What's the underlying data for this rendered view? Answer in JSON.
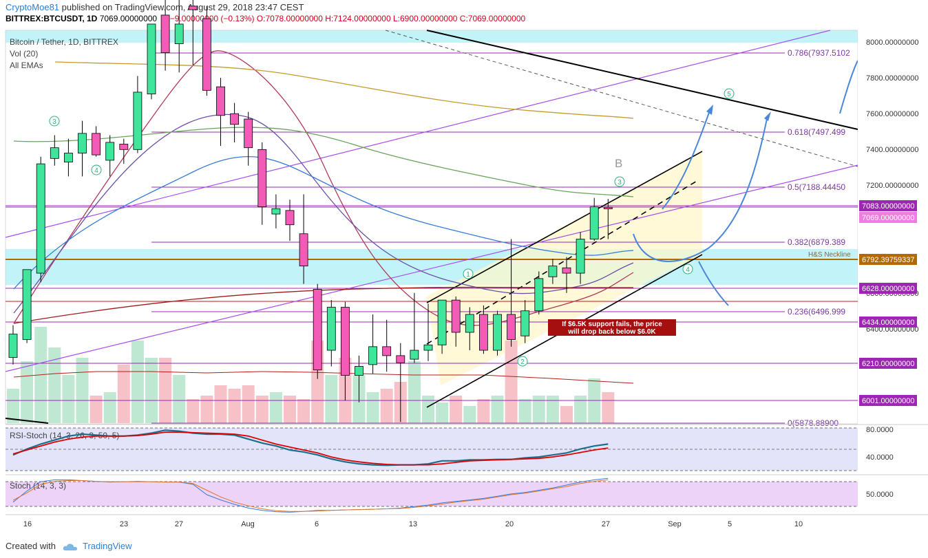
{
  "header": {
    "author": "CryptoMoe81",
    "published_text": "published on TradingView.com, August 29, 2018 23:47 CEST",
    "symbol": "BITTREX:BTCUSDT, 1D",
    "last": "7069.00000000",
    "change": "−9.00000000 (−0.13%)",
    "open": "O:7078.00000000",
    "high": "H:7124.00000000",
    "low": "L:6900.00000000",
    "close": "C:7069.00000000"
  },
  "legend": {
    "title": "Bitcoin / Tether, 1D, BITTREX",
    "volume": "Vol (20)",
    "emas": "All EMAs"
  },
  "footer": {
    "created_with": "Created with",
    "brand": "TradingView"
  },
  "colors": {
    "up": "#3fe59a",
    "down": "#f25cb6",
    "fib": "#9c27b0",
    "channel": "#000000",
    "projection": "#4a86d9",
    "zone": "#b2f0f6",
    "rsi_k": "#1b6f8a",
    "rsi_d": "#e00000"
  },
  "chart_data": [
    {
      "type": "candlestick",
      "title": "Bitcoin / Tether, 1D, BITTREX",
      "x_ticks": [
        "16",
        "23",
        "27",
        "Aug",
        "6",
        "13",
        "20",
        "27",
        "Sep",
        "5",
        "10"
      ],
      "y_ticks": [
        "8000.00000000",
        "7800.00000000",
        "7600.00000000",
        "7400.00000000",
        "7200.00000000",
        "6800.00000000",
        "6400.00000000"
      ],
      "ylim": [
        5860,
        8050
      ],
      "candles": [
        {
          "o": 6240,
          "h": 6420,
          "l": 6200,
          "c": 6370
        },
        {
          "o": 6340,
          "h": 6720,
          "l": 6320,
          "c": 6730
        },
        {
          "o": 6710,
          "h": 7360,
          "l": 6660,
          "c": 7320
        },
        {
          "o": 7350,
          "h": 7480,
          "l": 7310,
          "c": 7410
        },
        {
          "o": 7330,
          "h": 7460,
          "l": 7250,
          "c": 7380
        },
        {
          "o": 7380,
          "h": 7560,
          "l": 7250,
          "c": 7490
        },
        {
          "o": 7490,
          "h": 7530,
          "l": 7360,
          "c": 7370
        },
        {
          "o": 7340,
          "h": 7480,
          "l": 7250,
          "c": 7440
        },
        {
          "o": 7430,
          "h": 7460,
          "l": 7320,
          "c": 7400
        },
        {
          "o": 7400,
          "h": 7810,
          "l": 7380,
          "c": 7720
        },
        {
          "o": 7710,
          "h": 8100,
          "l": 7680,
          "c": 8100
        },
        {
          "o": 8150,
          "h": 8250,
          "l": 7840,
          "c": 7940
        },
        {
          "o": 7990,
          "h": 8250,
          "l": 7830,
          "c": 8100
        },
        {
          "o": 8200,
          "h": 8260,
          "l": 7870,
          "c": 8180
        },
        {
          "o": 8130,
          "h": 8200,
          "l": 7700,
          "c": 7730
        },
        {
          "o": 7750,
          "h": 7800,
          "l": 7420,
          "c": 7590
        },
        {
          "o": 7600,
          "h": 7660,
          "l": 7440,
          "c": 7540
        },
        {
          "o": 7570,
          "h": 7610,
          "l": 7310,
          "c": 7410
        },
        {
          "o": 7400,
          "h": 7440,
          "l": 6980,
          "c": 7080
        },
        {
          "o": 7040,
          "h": 7150,
          "l": 6960,
          "c": 7070
        },
        {
          "o": 7060,
          "h": 7120,
          "l": 6890,
          "c": 6980
        },
        {
          "o": 6930,
          "h": 7150,
          "l": 6650,
          "c": 6750
        },
        {
          "o": 6620,
          "h": 6650,
          "l": 6120,
          "c": 6170
        },
        {
          "o": 6280,
          "h": 6560,
          "l": 6190,
          "c": 6520
        },
        {
          "o": 6520,
          "h": 6550,
          "l": 6000,
          "c": 6140
        },
        {
          "o": 6140,
          "h": 6250,
          "l": 5990,
          "c": 6190
        },
        {
          "o": 6200,
          "h": 6480,
          "l": 6150,
          "c": 6300
        },
        {
          "o": 6300,
          "h": 6450,
          "l": 6160,
          "c": 6250
        },
        {
          "o": 6250,
          "h": 6320,
          "l": 5880,
          "c": 6210
        },
        {
          "o": 6230,
          "h": 6600,
          "l": 6210,
          "c": 6280
        },
        {
          "o": 6280,
          "h": 6540,
          "l": 6220,
          "c": 6310
        },
        {
          "o": 6310,
          "h": 6560,
          "l": 6260,
          "c": 6560
        },
        {
          "o": 6560,
          "h": 6580,
          "l": 6300,
          "c": 6380
        },
        {
          "o": 6380,
          "h": 6520,
          "l": 6280,
          "c": 6480
        },
        {
          "o": 6480,
          "h": 6530,
          "l": 6260,
          "c": 6280
        },
        {
          "o": 6280,
          "h": 6500,
          "l": 6250,
          "c": 6480
        },
        {
          "o": 6480,
          "h": 6900,
          "l": 6300,
          "c": 6340
        },
        {
          "o": 6360,
          "h": 6560,
          "l": 6320,
          "c": 6500
        },
        {
          "o": 6500,
          "h": 6720,
          "l": 6480,
          "c": 6680
        },
        {
          "o": 6690,
          "h": 6790,
          "l": 6650,
          "c": 6750
        },
        {
          "o": 6740,
          "h": 6800,
          "l": 6600,
          "c": 6710
        },
        {
          "o": 6710,
          "h": 6940,
          "l": 6650,
          "c": 6900
        },
        {
          "o": 6900,
          "h": 7130,
          "l": 6890,
          "c": 7080
        },
        {
          "o": 7078,
          "h": 7124,
          "l": 6900,
          "c": 7069
        }
      ],
      "volume_ma": "Vol (20)",
      "annotations": {
        "fib_labels": [
          "0.786(7937.5102",
          "0.618(7497.499",
          "0.5(7188.44450",
          "0.382(6879.389",
          "0.236(6496.999",
          "0(5878.88900"
        ],
        "price_tags": [
          "7083.00000000",
          "7069.00000000",
          "6792.39759337",
          "6628.00000000",
          "6434.00000000",
          "6210.00000000",
          "6001.00000000"
        ],
        "neckline": "H&S Neckline",
        "wave_labels": [
          "3",
          "4",
          "1",
          "2",
          "3",
          "4",
          "5"
        ],
        "B_label": "B",
        "note_line1": "If $6.5K support fails, the price",
        "note_line2": "will drop back below $6.0K"
      }
    },
    {
      "type": "line",
      "title": "RSI-Stoch (14, 3, 26, 3, 50, 5)",
      "y_ticks": [
        "80.0000",
        "40.0000"
      ],
      "ylim": [
        0,
        100
      ],
      "series": [
        {
          "values": [
            40,
            52,
            62,
            70,
            78,
            82,
            80,
            78,
            78,
            80,
            84,
            90,
            88,
            84,
            82,
            82,
            80,
            72,
            64,
            58,
            50,
            46,
            40,
            32,
            26,
            22,
            20,
            19,
            20,
            20,
            22,
            28,
            28,
            30,
            30,
            31,
            31,
            34,
            36,
            40,
            44,
            52,
            58,
            62
          ]
        },
        {
          "values": [
            42,
            50,
            58,
            66,
            72,
            76,
            78,
            78,
            78,
            79,
            82,
            86,
            86,
            85,
            84,
            83,
            82,
            78,
            70,
            62,
            56,
            50,
            44,
            36,
            30,
            26,
            23,
            21,
            20,
            20,
            20,
            22,
            25,
            28,
            29,
            30,
            31,
            32,
            33,
            36,
            40,
            45,
            50,
            54
          ]
        }
      ]
    },
    {
      "type": "line",
      "title": "Stoch (14, 3, 3)",
      "y_ticks": [
        "50.0000"
      ],
      "ylim": [
        0,
        100
      ],
      "series": [
        {
          "values": [
            30,
            60,
            85,
            90,
            90,
            88,
            86,
            84,
            85,
            86,
            85,
            84,
            84,
            78,
            50,
            36,
            24,
            14,
            8,
            4,
            3,
            5,
            8,
            8,
            9,
            10,
            11,
            12,
            14,
            18,
            22,
            28,
            32,
            36,
            40,
            46,
            52,
            56,
            62,
            68,
            76,
            84,
            90,
            94
          ]
        },
        {
          "values": [
            35,
            55,
            78,
            86,
            88,
            88,
            86,
            85,
            85,
            85,
            85,
            84,
            84,
            80,
            62,
            44,
            30,
            20,
            12,
            7,
            5,
            5,
            6,
            8,
            9,
            10,
            11,
            12,
            13,
            16,
            20,
            25,
            30,
            34,
            38,
            44,
            50,
            54,
            60,
            66,
            72,
            80,
            86,
            90
          ]
        }
      ]
    }
  ]
}
